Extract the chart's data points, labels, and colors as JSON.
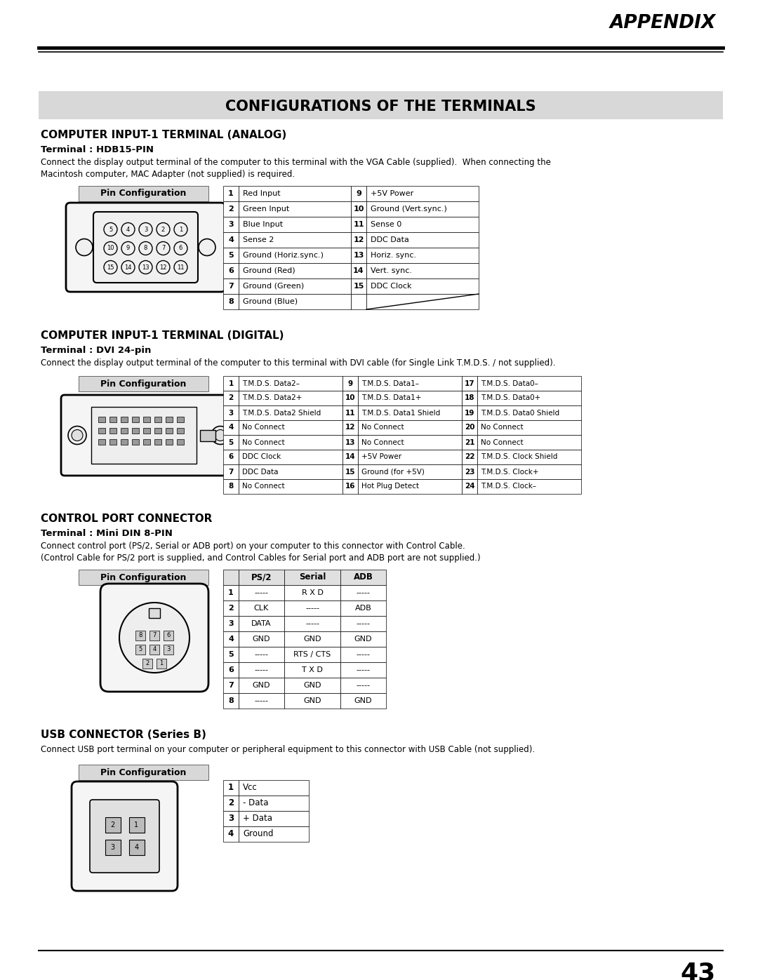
{
  "page_title": "APPENDIX",
  "section_title": "CONFIGURATIONS OF THE TERMINALS",
  "page_number": "43",
  "bg_color": "#ffffff",
  "analog_title": "COMPUTER INPUT-1 TERMINAL (ANALOG)",
  "analog_subtitle": "Terminal : HDB15-PIN",
  "analog_desc1": "Connect the display output terminal of the computer to this terminal with the VGA Cable (supplied).  When connecting the",
  "analog_desc2": "Macintosh computer, MAC Adapter (not supplied) is required.",
  "analog_pins_left": [
    [
      "1",
      "Red Input"
    ],
    [
      "2",
      "Green Input"
    ],
    [
      "3",
      "Blue Input"
    ],
    [
      "4",
      "Sense 2"
    ],
    [
      "5",
      "Ground (Horiz.sync.)"
    ],
    [
      "6",
      "Ground (Red)"
    ],
    [
      "7",
      "Ground (Green)"
    ],
    [
      "8",
      "Ground (Blue)"
    ]
  ],
  "analog_pins_right": [
    [
      "9",
      "+5V Power"
    ],
    [
      "10",
      "Ground (Vert.sync.)"
    ],
    [
      "11",
      "Sense 0"
    ],
    [
      "12",
      "DDC Data"
    ],
    [
      "13",
      "Horiz. sync."
    ],
    [
      "14",
      "Vert. sync."
    ],
    [
      "15",
      "DDC Clock"
    ],
    [
      "",
      ""
    ]
  ],
  "digital_title": "COMPUTER INPUT-1 TERMINAL (DIGITAL)",
  "digital_subtitle": "Terminal : DVI 24-pin",
  "digital_desc": "Connect the display output terminal of the computer to this terminal with DVI cable (for Single Link T.M.D.S. / not supplied).",
  "digital_pins_col1": [
    [
      "1",
      "T.M.D.S. Data2–"
    ],
    [
      "2",
      "T.M.D.S. Data2+"
    ],
    [
      "3",
      "T.M.D.S. Data2 Shield"
    ],
    [
      "4",
      "No Connect"
    ],
    [
      "5",
      "No Connect"
    ],
    [
      "6",
      "DDC Clock"
    ],
    [
      "7",
      "DDC Data"
    ],
    [
      "8",
      "No Connect"
    ]
  ],
  "digital_pins_col2": [
    [
      "9",
      "T.M.D.S. Data1–"
    ],
    [
      "10",
      "T.M.D.S. Data1+"
    ],
    [
      "11",
      "T.M.D.S. Data1 Shield"
    ],
    [
      "12",
      "No Connect"
    ],
    [
      "13",
      "No Connect"
    ],
    [
      "14",
      "+5V Power"
    ],
    [
      "15",
      "Ground (for +5V)"
    ],
    [
      "16",
      "Hot Plug Detect"
    ]
  ],
  "digital_pins_col3": [
    [
      "17",
      "T.M.D.S. Data0–"
    ],
    [
      "18",
      "T.M.D.S. Data0+"
    ],
    [
      "19",
      "T.M.D.S. Data0 Shield"
    ],
    [
      "20",
      "No Connect"
    ],
    [
      "21",
      "No Connect"
    ],
    [
      "22",
      "T.M.D.S. Clock Shield"
    ],
    [
      "23",
      "T.M.D.S. Clock+"
    ],
    [
      "24",
      "T.M.D.S. Clock–"
    ]
  ],
  "control_title": "CONTROL PORT CONNECTOR",
  "control_subtitle": "Terminal : Mini DIN 8-PIN",
  "control_desc1": "Connect control port (PS/2, Serial or ADB port) on your computer to this connector with Control Cable.",
  "control_desc2": "(Control Cable for PS/2 port is supplied, and Control Cables for Serial port and ADB port are not supplied.)",
  "control_headers": [
    "",
    "PS/2",
    "Serial",
    "ADB"
  ],
  "control_rows": [
    [
      "1",
      "-----",
      "R X D",
      "-----"
    ],
    [
      "2",
      "CLK",
      "-----",
      "ADB"
    ],
    [
      "3",
      "DATA",
      "-----",
      "-----"
    ],
    [
      "4",
      "GND",
      "GND",
      "GND"
    ],
    [
      "5",
      "-----",
      "RTS / CTS",
      "-----"
    ],
    [
      "6",
      "-----",
      "T X D",
      "-----"
    ],
    [
      "7",
      "GND",
      "GND",
      "-----"
    ],
    [
      "8",
      "-----",
      "GND",
      "GND"
    ]
  ],
  "usb_title": "USB CONNECTOR (Series B)",
  "usb_desc": "Connect USB port terminal on your computer or peripheral equipment to this connector with USB Cable (not supplied).",
  "usb_pins": [
    [
      "1",
      "Vcc"
    ],
    [
      "2",
      "- Data"
    ],
    [
      "3",
      "+ Data"
    ],
    [
      "4",
      "Ground"
    ]
  ]
}
